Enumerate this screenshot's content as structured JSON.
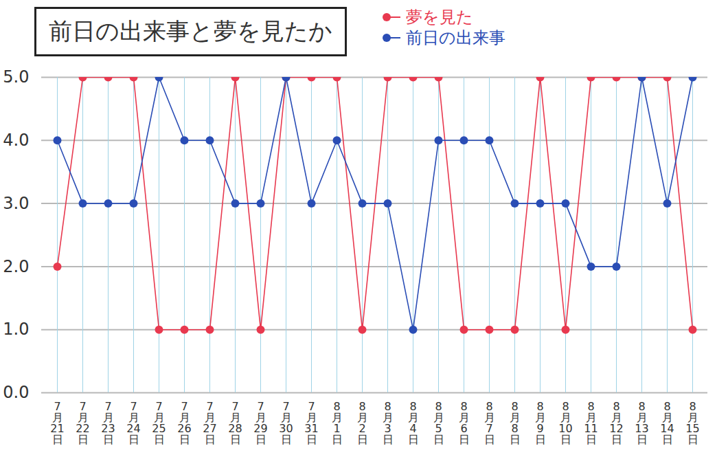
{
  "chart_data": {
    "type": "line",
    "title": "前日の出来事と夢を見たか",
    "categories": [
      "7月21日",
      "7月22日",
      "7月23日",
      "7月24日",
      "7月25日",
      "7月26日",
      "7月27日",
      "7月28日",
      "7月29日",
      "7月30日",
      "7月31日",
      "8月1日",
      "8月2日",
      "8月3日",
      "8月4日",
      "8月5日",
      "8月6日",
      "8月7日",
      "8月8日",
      "8月9日",
      "8月10日",
      "8月11日",
      "8月12日",
      "8月13日",
      "8月14日",
      "8月15日"
    ],
    "series": [
      {
        "name": "夢を見た",
        "color": "#e8394f",
        "marker": "circle",
        "values": [
          2,
          5,
          5,
          5,
          1,
          1,
          1,
          5,
          1,
          5,
          5,
          5,
          1,
          5,
          5,
          5,
          1,
          1,
          1,
          5,
          1,
          5,
          5,
          5,
          5,
          1
        ]
      },
      {
        "name": "前日の出来事",
        "color": "#2a4db5",
        "marker": "circle",
        "values": [
          4,
          3,
          3,
          3,
          5,
          4,
          4,
          3,
          3,
          5,
          3,
          4,
          3,
          3,
          1,
          4,
          4,
          4,
          3,
          3,
          3,
          2,
          2,
          5,
          3,
          5
        ]
      }
    ],
    "ylim": [
      0,
      5
    ],
    "yticks": [
      0,
      1,
      2,
      3,
      4,
      5
    ],
    "grid": true,
    "legend": "top"
  }
}
